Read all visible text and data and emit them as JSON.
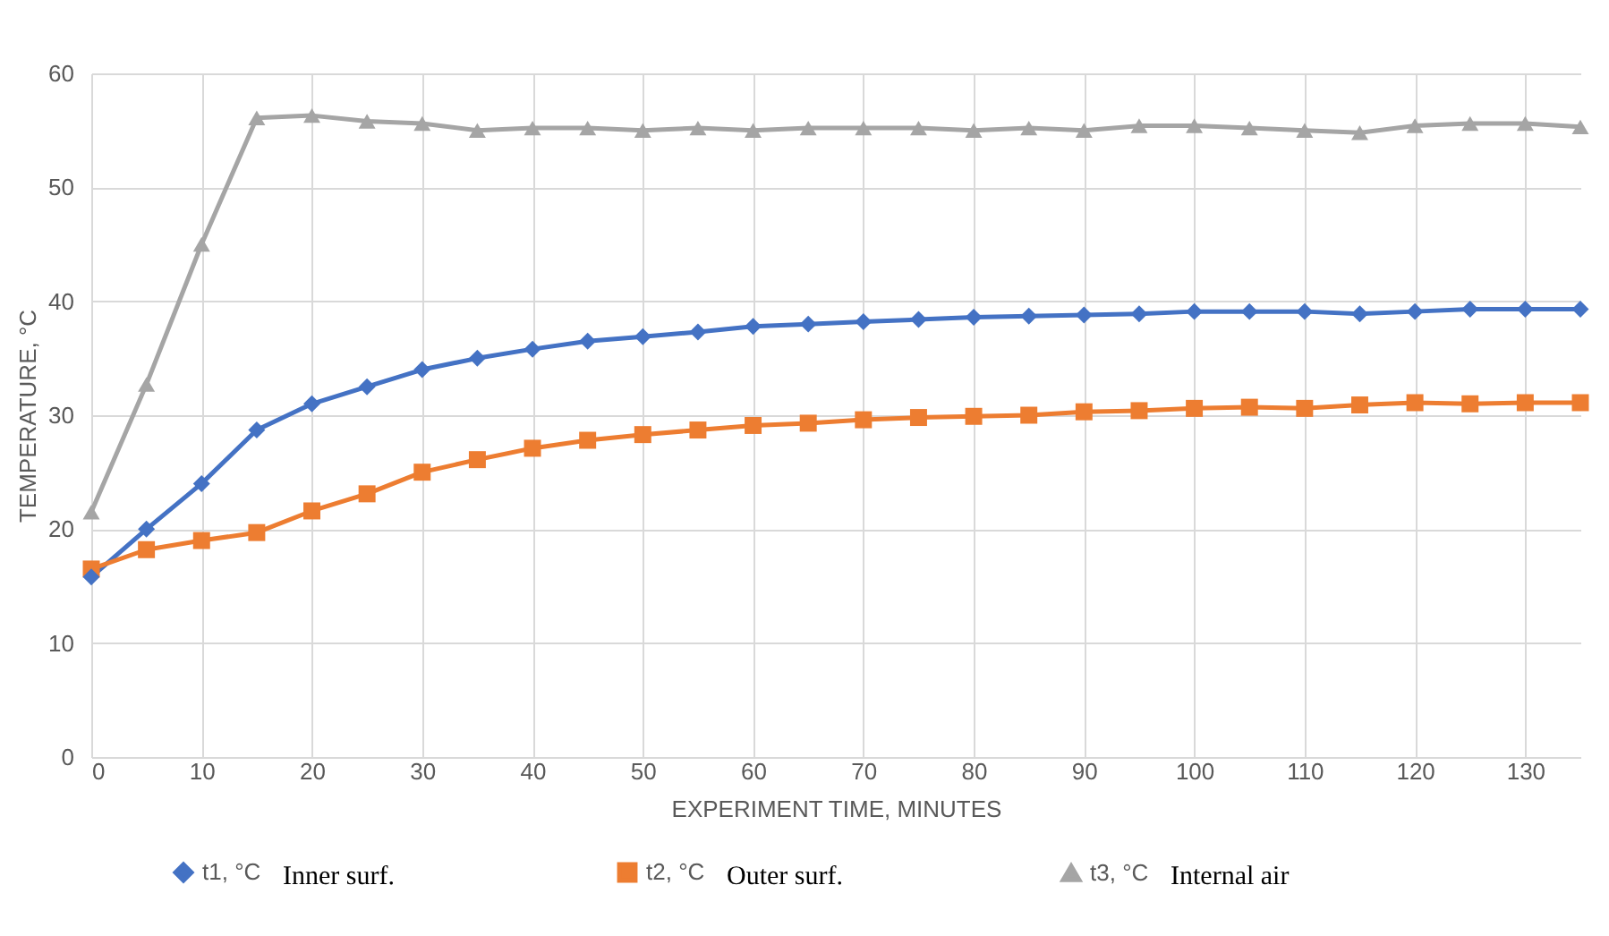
{
  "chart_data": {
    "type": "line",
    "xlabel": "EXPERIMENT TIME, MINUTES",
    "ylabel": "TEMPERATURE, °C",
    "x": [
      0,
      5,
      10,
      15,
      20,
      25,
      30,
      35,
      40,
      45,
      50,
      55,
      60,
      65,
      70,
      75,
      80,
      85,
      90,
      95,
      100,
      105,
      110,
      115,
      120,
      125,
      130,
      135
    ],
    "xlim": [
      0,
      135
    ],
    "xticks": [
      0,
      10,
      20,
      30,
      40,
      50,
      60,
      70,
      80,
      90,
      100,
      110,
      120,
      130
    ],
    "ylim": [
      0,
      60
    ],
    "yticks": [
      0,
      10,
      20,
      30,
      40,
      50,
      60
    ],
    "grid": true,
    "legend": "bottom",
    "annotations": [
      "Inner surf.",
      "Outer surf.",
      "Internal air"
    ],
    "series": [
      {
        "name": "t1, °C",
        "color": "#4472c4",
        "marker": "diamond",
        "values": [
          15.8,
          20,
          24,
          28.7,
          31,
          32.5,
          34,
          35,
          35.8,
          36.5,
          36.9,
          37.3,
          37.8,
          38,
          38.2,
          38.4,
          38.6,
          38.7,
          38.8,
          38.9,
          39.1,
          39.1,
          39.1,
          38.9,
          39.1,
          39.3,
          39.3,
          39.3
        ]
      },
      {
        "name": "t2, °C",
        "color": "#ed7d31",
        "marker": "square",
        "values": [
          16.5,
          18.2,
          19,
          19.7,
          21.6,
          23.1,
          25,
          26.1,
          27.1,
          27.8,
          28.3,
          28.7,
          29.1,
          29.3,
          29.6,
          29.8,
          29.9,
          30,
          30.3,
          30.4,
          30.6,
          30.7,
          30.6,
          30.9,
          31.1,
          31,
          31.1,
          31.1
        ]
      },
      {
        "name": "t3, °C",
        "color": "#a5a5a5",
        "marker": "triangle",
        "values": [
          21.5,
          32.7,
          45,
          56.1,
          56.3,
          55.8,
          55.6,
          55,
          55.2,
          55.2,
          55,
          55.2,
          55,
          55.2,
          55.2,
          55.2,
          55,
          55.2,
          55,
          55.4,
          55.4,
          55.2,
          55,
          54.8,
          55.4,
          55.6,
          55.6,
          55.3
        ]
      }
    ]
  }
}
